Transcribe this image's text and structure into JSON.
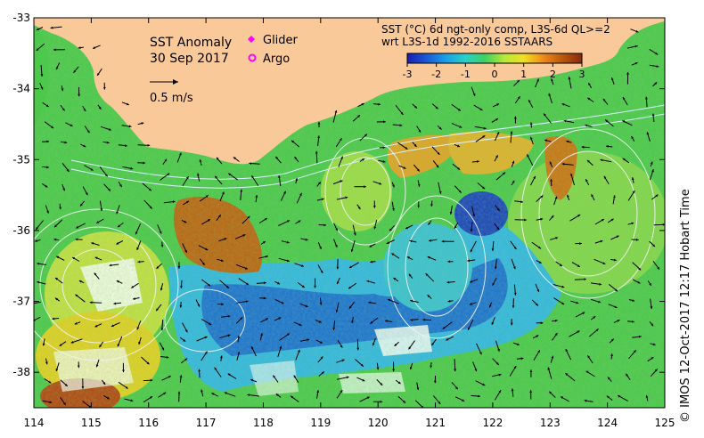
{
  "map": {
    "title_line1": "SST Anomaly",
    "title_line2": "30 Sep 2017",
    "velocity_scale_label": "0.5 m/s",
    "legend": [
      {
        "label": "Glider",
        "color": "#ff00ff",
        "symbol": "diamond"
      },
      {
        "label": "Argo",
        "color": "#ff00ff",
        "symbol": "ring"
      }
    ],
    "product_line1": "SST (°C) 6d ngt-only comp, L3S-6d QL>=2",
    "product_line2": "wrt L3S-1d 1992-2016 SSTAARS",
    "colorbar": {
      "ticks": [
        "-3",
        "-2",
        "-1",
        "0",
        "1",
        "2",
        "3"
      ],
      "range": [
        -3,
        3
      ],
      "colors": [
        "#1c1cb4",
        "#1a5ad6",
        "#1aa0e6",
        "#2ad0c8",
        "#40d060",
        "#b8e838",
        "#f0e020",
        "#f08a1a",
        "#b8560e",
        "#8a2a08"
      ]
    },
    "credit": "© IMOS 12-Oct-2017 12:17 Hobart Time",
    "lon_ticks": [
      "114",
      "115",
      "116",
      "117",
      "118",
      "119",
      "120",
      "121",
      "122",
      "123",
      "124",
      "125"
    ],
    "lat_ticks": [
      "-33",
      "-34",
      "-35",
      "-36",
      "-37",
      "-38"
    ],
    "lon_range": [
      114,
      125
    ],
    "lat_range": [
      -38.5,
      -33
    ],
    "land_color": "#f9c99a"
  }
}
